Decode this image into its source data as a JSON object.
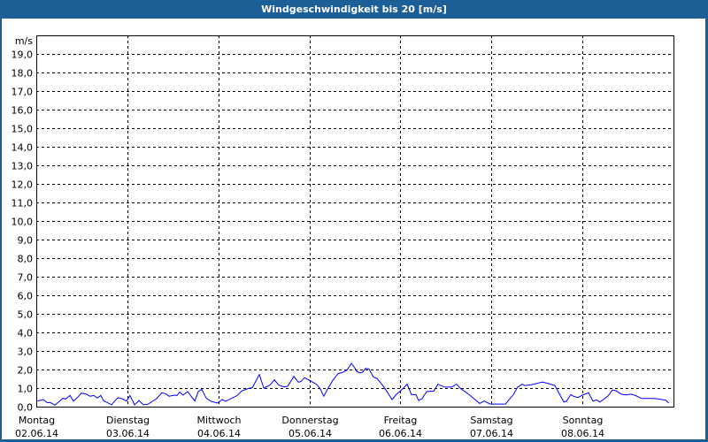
{
  "window": {
    "title": "Windgeschwindigkeit bis 20 [m/s]"
  },
  "chart_data": {
    "type": "line",
    "title": "Windgeschwindigkeit bis 20 [m/s]",
    "ylabel": "m/s",
    "ylim": [
      0,
      20
    ],
    "yticks": [
      "0,0",
      "1,0",
      "2,0",
      "3,0",
      "4,0",
      "5,0",
      "6,0",
      "7,0",
      "8,0",
      "9,0",
      "10,0",
      "11,0",
      "12,0",
      "13,0",
      "14,0",
      "15,0",
      "16,0",
      "17,0",
      "18,0",
      "19,0"
    ],
    "grid": true,
    "line_color": "#0000ff",
    "x_unit": "hours since start of 02.06.14",
    "xlim": [
      0,
      168
    ],
    "xticks": [
      {
        "day": "Montag",
        "date": "02.06.14"
      },
      {
        "day": "Dienstag",
        "date": "03.06.14"
      },
      {
        "day": "Mittwoch",
        "date": "04.06.14"
      },
      {
        "day": "Donnerstag",
        "date": "05.06.14"
      },
      {
        "day": "Freitag",
        "date": "06.06.14"
      },
      {
        "day": "Samstag",
        "date": "07.06.14"
      },
      {
        "day": "Sonntag",
        "date": "08.06.14"
      }
    ],
    "points": [
      [
        0,
        0.29
      ],
      [
        1.9,
        0.38
      ],
      [
        2.8,
        0.22
      ],
      [
        3.7,
        0.22
      ],
      [
        4.9,
        0.08
      ],
      [
        7,
        0.45
      ],
      [
        7.7,
        0.41
      ],
      [
        8.9,
        0.6
      ],
      [
        9.8,
        0.3
      ],
      [
        10.7,
        0.46
      ],
      [
        11.9,
        0.73
      ],
      [
        13.1,
        0.68
      ],
      [
        14.2,
        0.56
      ],
      [
        15.2,
        0.6
      ],
      [
        16.1,
        0.46
      ],
      [
        17,
        0.6
      ],
      [
        17.7,
        0.33
      ],
      [
        19.8,
        0.1
      ],
      [
        21.5,
        0.48
      ],
      [
        22.6,
        0.43
      ],
      [
        23.8,
        0.3
      ],
      [
        24.7,
        0.6
      ],
      [
        25.9,
        0.1
      ],
      [
        27.1,
        0.33
      ],
      [
        28.2,
        0.1
      ],
      [
        29.4,
        0.13
      ],
      [
        31.7,
        0.43
      ],
      [
        33.1,
        0.75
      ],
      [
        34.1,
        0.7
      ],
      [
        35,
        0.56
      ],
      [
        36.4,
        0.62
      ],
      [
        37.1,
        0.6
      ],
      [
        37.8,
        0.78
      ],
      [
        38.7,
        0.62
      ],
      [
        39.9,
        0.81
      ],
      [
        41.8,
        0.3
      ],
      [
        42.7,
        0.81
      ],
      [
        43.6,
        0.94
      ],
      [
        44.8,
        0.46
      ],
      [
        46,
        0.29
      ],
      [
        47.8,
        0.19
      ],
      [
        49,
        0.38
      ],
      [
        49.9,
        0.29
      ],
      [
        51.8,
        0.48
      ],
      [
        53,
        0.6
      ],
      [
        54.1,
        0.84
      ],
      [
        55.8,
        0.97
      ],
      [
        57,
        1.03
      ],
      [
        58.8,
        1.73
      ],
      [
        60,
        1.0
      ],
      [
        61.6,
        1.16
      ],
      [
        62.8,
        1.44
      ],
      [
        63.9,
        1.16
      ],
      [
        65.3,
        1.06
      ],
      [
        66.3,
        1.1
      ],
      [
        67.9,
        1.63
      ],
      [
        69.1,
        1.32
      ],
      [
        69.8,
        1.35
      ],
      [
        70.7,
        1.56
      ],
      [
        71.9,
        1.43
      ],
      [
        74,
        1.19
      ],
      [
        74.9,
        0.94
      ],
      [
        75.8,
        0.56
      ],
      [
        76.8,
        0.94
      ],
      [
        78.2,
        1.43
      ],
      [
        79.6,
        1.78
      ],
      [
        80.7,
        1.84
      ],
      [
        81.9,
        1.97
      ],
      [
        83.1,
        2.33
      ],
      [
        83.8,
        2.14
      ],
      [
        84.5,
        1.9
      ],
      [
        85.4,
        1.81
      ],
      [
        86.1,
        1.87
      ],
      [
        86.8,
        2.06
      ],
      [
        87.7,
        2.03
      ],
      [
        88.9,
        1.59
      ],
      [
        89.8,
        1.52
      ],
      [
        91.5,
        1.11
      ],
      [
        93.8,
        0.38
      ],
      [
        95,
        0.67
      ],
      [
        96.1,
        0.86
      ],
      [
        97.8,
        1.21
      ],
      [
        98.9,
        0.65
      ],
      [
        100.1,
        0.65
      ],
      [
        100.8,
        0.33
      ],
      [
        101.7,
        0.43
      ],
      [
        102.9,
        0.81
      ],
      [
        104.8,
        0.84
      ],
      [
        105.9,
        1.21
      ],
      [
        107.6,
        1.05
      ],
      [
        109.4,
        1.05
      ],
      [
        110.8,
        1.21
      ],
      [
        111.8,
        0.99
      ],
      [
        114.1,
        0.65
      ],
      [
        116.9,
        0.17
      ],
      [
        118.1,
        0.3
      ],
      [
        119.7,
        0.14
      ],
      [
        123.7,
        0.14
      ],
      [
        125.8,
        0.65
      ],
      [
        126.9,
        1.05
      ],
      [
        128.1,
        1.21
      ],
      [
        128.8,
        1.14
      ],
      [
        130.4,
        1.17
      ],
      [
        133.5,
        1.33
      ],
      [
        135.1,
        1.24
      ],
      [
        136.7,
        1.14
      ],
      [
        139.1,
        0.25
      ],
      [
        139.8,
        0.29
      ],
      [
        140.9,
        0.65
      ],
      [
        141.6,
        0.56
      ],
      [
        142.8,
        0.49
      ],
      [
        144,
        0.62
      ],
      [
        145.6,
        0.75
      ],
      [
        146.8,
        0.29
      ],
      [
        147.7,
        0.36
      ],
      [
        148.6,
        0.25
      ],
      [
        150.7,
        0.57
      ],
      [
        151.9,
        0.89
      ],
      [
        152.8,
        0.86
      ],
      [
        154.2,
        0.67
      ],
      [
        155.4,
        0.63
      ],
      [
        156.8,
        0.67
      ],
      [
        158,
        0.6
      ],
      [
        159.6,
        0.44
      ],
      [
        163.1,
        0.44
      ],
      [
        165,
        0.38
      ],
      [
        165.9,
        0.35
      ],
      [
        166.8,
        0.19
      ]
    ]
  }
}
